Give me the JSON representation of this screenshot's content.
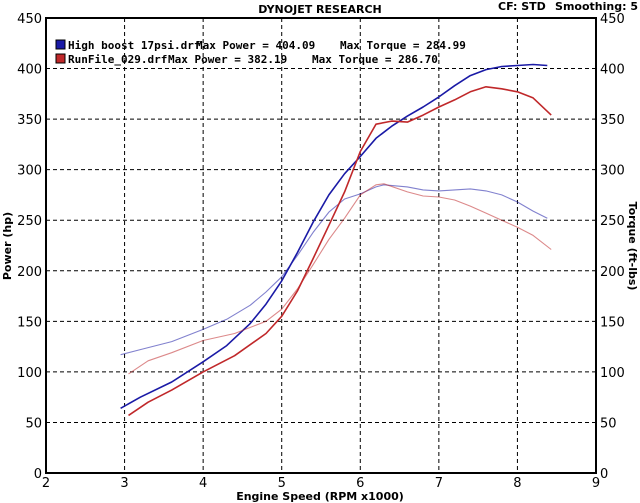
{
  "header": {
    "title": "DYNOJET RESEARCH",
    "cf_label": "CF: STD",
    "smoothing_label": "Smoothing: 5"
  },
  "chart_data": {
    "type": "line",
    "xlabel": "Engine Speed (RPM x1000)",
    "ylabel_left": "Power (hp)",
    "ylabel_right": "Torque (ft-lbs)",
    "xlim": [
      2,
      9
    ],
    "ylim": [
      0,
      450
    ],
    "x_ticks": [
      "2",
      "3",
      "4",
      "5",
      "6",
      "7",
      "8",
      "9"
    ],
    "y_ticks": [
      "0",
      "50",
      "100",
      "150",
      "200",
      "250",
      "300",
      "350",
      "400",
      "450"
    ],
    "grid": true,
    "legend_position": "top-left",
    "series": [
      {
        "name": "High boost 17psi.drf",
        "legend": {
          "file": "High boost 17psi.drf",
          "max_power_text": "Max Power = 404.09",
          "max_torque_text": "Max Torque = 284.99"
        },
        "color": "#1a1aa6",
        "power": {
          "x": [
            2.95,
            3.2,
            3.6,
            4.0,
            4.3,
            4.6,
            4.8,
            5.0,
            5.2,
            5.4,
            5.6,
            5.8,
            6.0,
            6.2,
            6.4,
            6.6,
            6.8,
            7.0,
            7.2,
            7.4,
            7.6,
            7.8,
            8.0,
            8.2,
            8.38
          ],
          "y": [
            64,
            75,
            90,
            110,
            126,
            148,
            167,
            190,
            218,
            248,
            275,
            296,
            313,
            331,
            343,
            353,
            362,
            372,
            383,
            393,
            399,
            402,
            403,
            404,
            403
          ]
        },
        "torque": {
          "x": [
            2.95,
            3.2,
            3.6,
            4.0,
            4.3,
            4.6,
            4.8,
            5.0,
            5.2,
            5.4,
            5.6,
            5.8,
            6.0,
            6.2,
            6.3,
            6.6,
            6.8,
            7.0,
            7.2,
            7.4,
            7.6,
            7.8,
            8.0,
            8.2,
            8.38
          ],
          "y": [
            117,
            122,
            130,
            142,
            152,
            166,
            179,
            194,
            215,
            238,
            258,
            271,
            276,
            283,
            285,
            283,
            280,
            279,
            280,
            281,
            279,
            275,
            268,
            259,
            252
          ]
        }
      },
      {
        "name": "RunFile_029.drf",
        "legend": {
          "file": "RunFile_029.drf",
          "max_power_text": "Max Power = 382.19",
          "max_torque_text": "Max Torque = 286.70"
        },
        "color": "#c0282a",
        "power": {
          "x": [
            3.05,
            3.3,
            3.6,
            4.0,
            4.4,
            4.8,
            5.0,
            5.2,
            5.4,
            5.6,
            5.8,
            6.0,
            6.2,
            6.4,
            6.6,
            6.8,
            7.0,
            7.2,
            7.4,
            7.6,
            7.8,
            8.0,
            8.2,
            8.43
          ],
          "y": [
            57,
            70,
            82,
            100,
            116,
            138,
            155,
            180,
            212,
            245,
            278,
            318,
            345,
            348,
            347,
            354,
            362,
            369,
            377,
            382,
            380,
            377,
            371,
            354
          ]
        },
        "torque": {
          "x": [
            3.05,
            3.3,
            3.6,
            4.0,
            4.4,
            4.8,
            5.0,
            5.2,
            5.4,
            5.6,
            5.8,
            6.0,
            6.2,
            6.3,
            6.6,
            6.8,
            7.0,
            7.2,
            7.4,
            7.6,
            7.8,
            8.0,
            8.2,
            8.43
          ],
          "y": [
            98,
            111,
            119,
            131,
            138,
            150,
            162,
            182,
            206,
            231,
            252,
            275,
            285,
            286,
            278,
            274,
            273,
            270,
            264,
            257,
            250,
            243,
            235,
            221
          ]
        }
      }
    ]
  }
}
